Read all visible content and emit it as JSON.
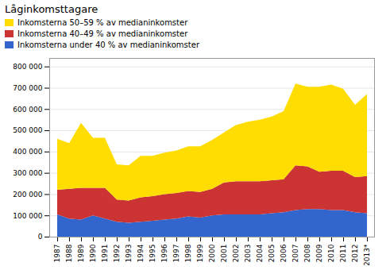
{
  "chart_data": {
    "type": "area",
    "stacked": true,
    "title": "Låginkomsttagare",
    "categories": [
      "1987",
      "1988",
      "1989",
      "1990",
      "1991",
      "1992",
      "1993",
      "1994",
      "1995",
      "1996",
      "1997",
      "1998",
      "1999",
      "2000",
      "2001",
      "2002",
      "2003",
      "2004",
      "2005",
      "2006",
      "2007",
      "2008",
      "2009",
      "2010",
      "2011",
      "2012",
      "2013*"
    ],
    "series": [
      {
        "name": "Inkomsterna under 40 % av medianinkomster",
        "color": "#3366CC",
        "values": [
          105000,
          85000,
          80000,
          100000,
          85000,
          70000,
          65000,
          70000,
          75000,
          80000,
          85000,
          95000,
          90000,
          100000,
          105000,
          105000,
          105000,
          105000,
          110000,
          115000,
          125000,
          130000,
          130000,
          125000,
          125000,
          115000,
          110000
        ]
      },
      {
        "name": "Inkomsterna 40–49 % av medianinkomster",
        "color": "#CC3333",
        "values": [
          115000,
          140000,
          150000,
          130000,
          145000,
          105000,
          105000,
          115000,
          115000,
          120000,
          120000,
          120000,
          120000,
          125000,
          150000,
          155000,
          155000,
          155000,
          155000,
          155000,
          210000,
          200000,
          175000,
          185000,
          185000,
          165000,
          175000
        ]
      },
      {
        "name": "Inkomsterna 50–59 % av medianinkomster",
        "color": "#FFDD00",
        "values": [
          240000,
          215000,
          305000,
          235000,
          235000,
          165000,
          165000,
          195000,
          190000,
          195000,
          200000,
          210000,
          215000,
          230000,
          235000,
          265000,
          280000,
          290000,
          300000,
          320000,
          385000,
          375000,
          400000,
          405000,
          385000,
          340000,
          385000
        ]
      }
    ],
    "ylim": [
      0,
      840000
    ],
    "yticks": [
      0,
      {
        "value": 100000,
        "label": "100 000"
      },
      {
        "value": 200000,
        "label": "200 000"
      },
      {
        "value": 300000,
        "label": "300 000"
      },
      {
        "value": 400000,
        "label": "400 000"
      },
      {
        "value": 500000,
        "label": "500 000"
      },
      {
        "value": 600000,
        "label": "600 000"
      },
      {
        "value": 700000,
        "label": "700 000"
      },
      {
        "value": 800000,
        "label": "800 000"
      }
    ],
    "grid": true,
    "legend": "upper left"
  }
}
